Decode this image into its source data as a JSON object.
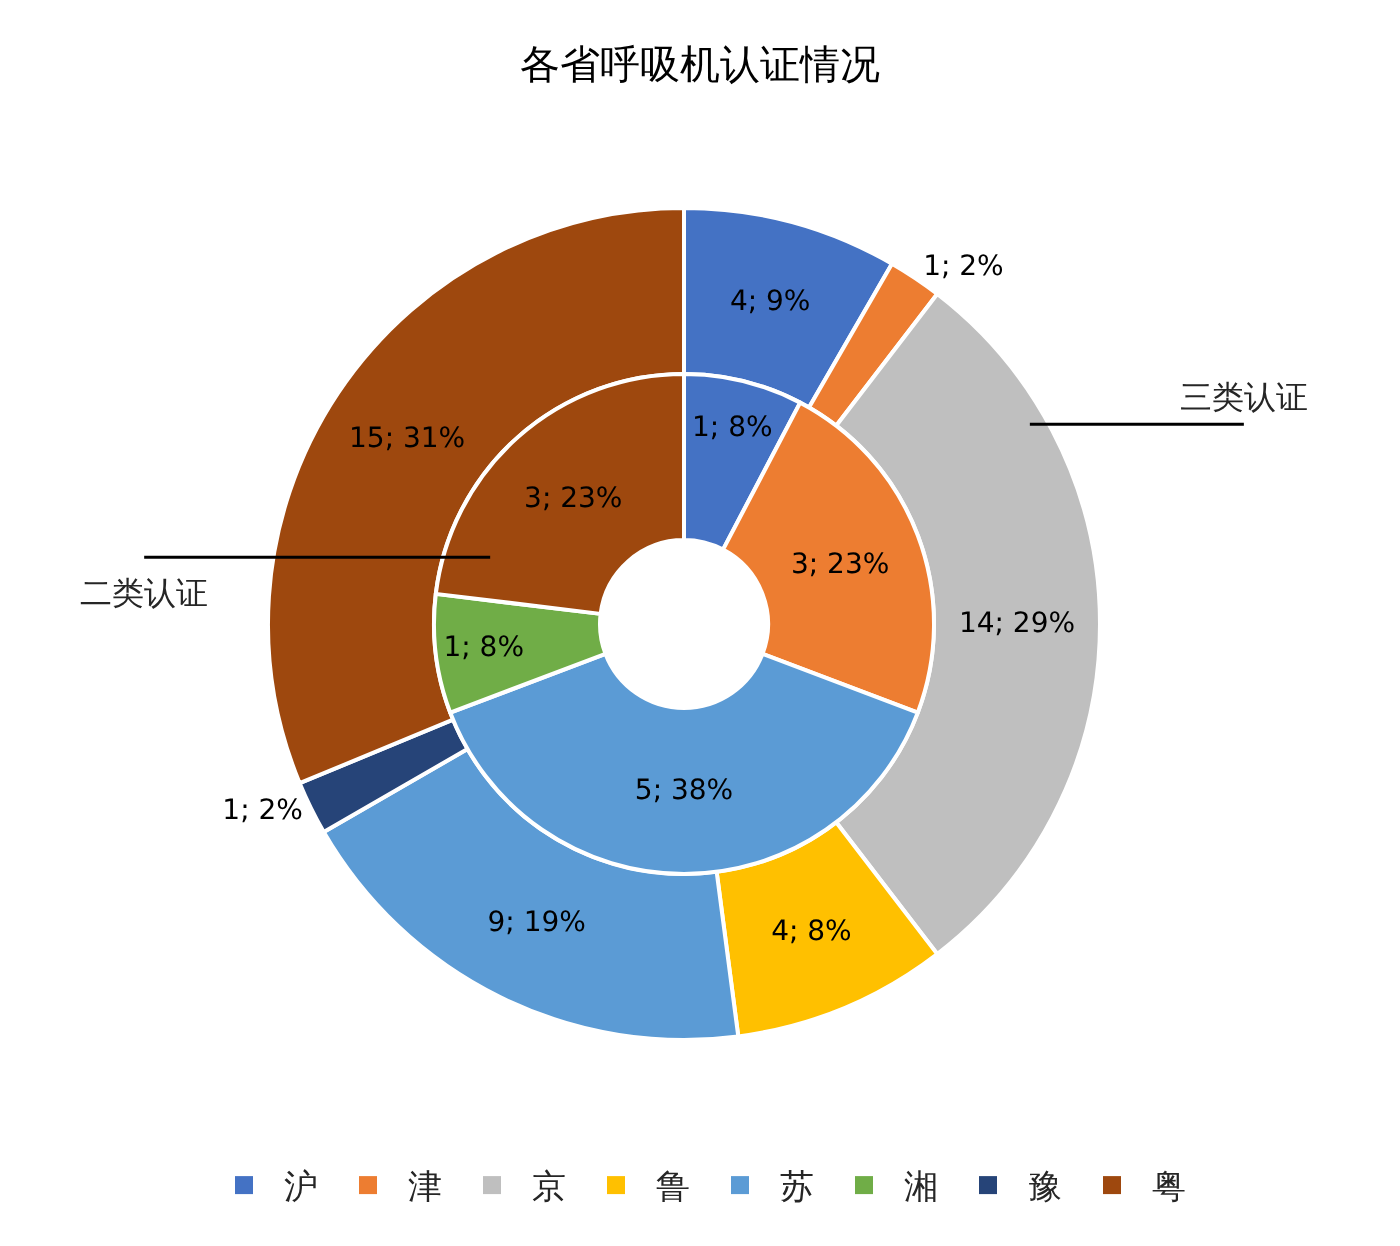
{
  "chart_data": {
    "type": "donut",
    "title": "各省呼吸机认证情况",
    "categories": [
      "沪",
      "津",
      "京",
      "鲁",
      "苏",
      "湘",
      "豫",
      "粤"
    ],
    "colors": [
      "#4472c4",
      "#ed7d31",
      "#bfbfbf",
      "#ffc000",
      "#5b9bd5",
      "#70ad47",
      "#264478",
      "#9e480e"
    ],
    "series": [
      {
        "name": "三类认证",
        "values": [
          4,
          1,
          14,
          4,
          9,
          null,
          1,
          15
        ],
        "value_labels": [
          "4; 9%",
          "1; 2%",
          "14; 29%",
          "4; 8%",
          "9; 19%",
          null,
          "1; 2%",
          "15; 31%"
        ]
      },
      {
        "name": "二类认证",
        "values": [
          1,
          3,
          null,
          null,
          5,
          1,
          null,
          3
        ],
        "value_labels": [
          "1; 8%",
          "3; 23%",
          null,
          null,
          "5; 38%",
          "1; 8%",
          null,
          "3; 23%"
        ]
      }
    ],
    "legend": "bottom"
  }
}
